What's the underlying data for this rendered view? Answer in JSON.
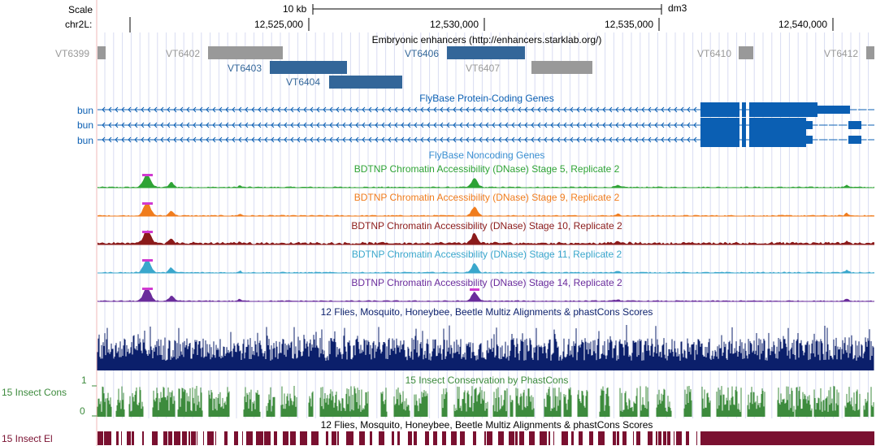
{
  "scale": {
    "label": "Scale",
    "bar_label": "10 kb",
    "assembly": "dm3"
  },
  "chrom": {
    "label": "chr2L:",
    "ticks": [
      "12,525,000",
      "12,530,000",
      "12,535,000",
      "12,540,000"
    ]
  },
  "tracks": {
    "enhancers": {
      "title": "Embryonic enhancers (http://enhancers.starklab.org/)",
      "items": [
        {
          "name": "VT6399",
          "color": "#999999"
        },
        {
          "name": "VT6402",
          "color": "#999999"
        },
        {
          "name": "VT6403",
          "color": "#336699"
        },
        {
          "name": "VT6404",
          "color": "#336699"
        },
        {
          "name": "VT6406",
          "color": "#336699"
        },
        {
          "name": "VT6407",
          "color": "#999999"
        },
        {
          "name": "VT6410",
          "color": "#999999"
        },
        {
          "name": "VT6412",
          "color": "#999999"
        }
      ]
    },
    "genes": {
      "title": "FlyBase Protein-Coding Genes",
      "color": "#0b5fb3",
      "items": [
        {
          "name": "bun"
        },
        {
          "name": "bun"
        },
        {
          "name": "bun"
        }
      ]
    },
    "noncoding": {
      "title": "FlyBase Noncoding Genes",
      "color": "#3a8fd1"
    },
    "dnase": [
      {
        "title": "BDTNP Chromatin Accessibility (DNase) Stage 5, Replicate 2",
        "color": "#2ea335"
      },
      {
        "title": "BDTNP Chromatin Accessibility (DNase) Stage 9, Replicate 2",
        "color": "#f07c1d"
      },
      {
        "title": "BDTNP Chromatin Accessibility (DNase) Stage 10, Replicate 2",
        "color": "#8b1a1a"
      },
      {
        "title": "BDTNP Chromatin Accessibility (DNase) Stage 11, Replicate 2",
        "color": "#3aa7cc"
      },
      {
        "title": "BDTNP Chromatin Accessibility (DNase) Stage 14, Replicate 2",
        "color": "#6a2c9c"
      }
    ],
    "multiz": {
      "title": "12 Flies, Mosquito, Honeybee, Beetle Multiz Alignments & phastCons Scores",
      "color": "#0b1f6b"
    },
    "cons": {
      "title": "15 Insect Conservation by PhastCons",
      "side_label": "15 Insect Cons",
      "axis_top": "1",
      "axis_bottom": "0",
      "color": "#3d8b3d"
    },
    "elements": {
      "title": "12 Flies, Mosquito, Honeybee, Beetle Multiz Alignments & phastCons Scores",
      "side_label": "15 Insect El",
      "color": "#7a1030"
    }
  }
}
